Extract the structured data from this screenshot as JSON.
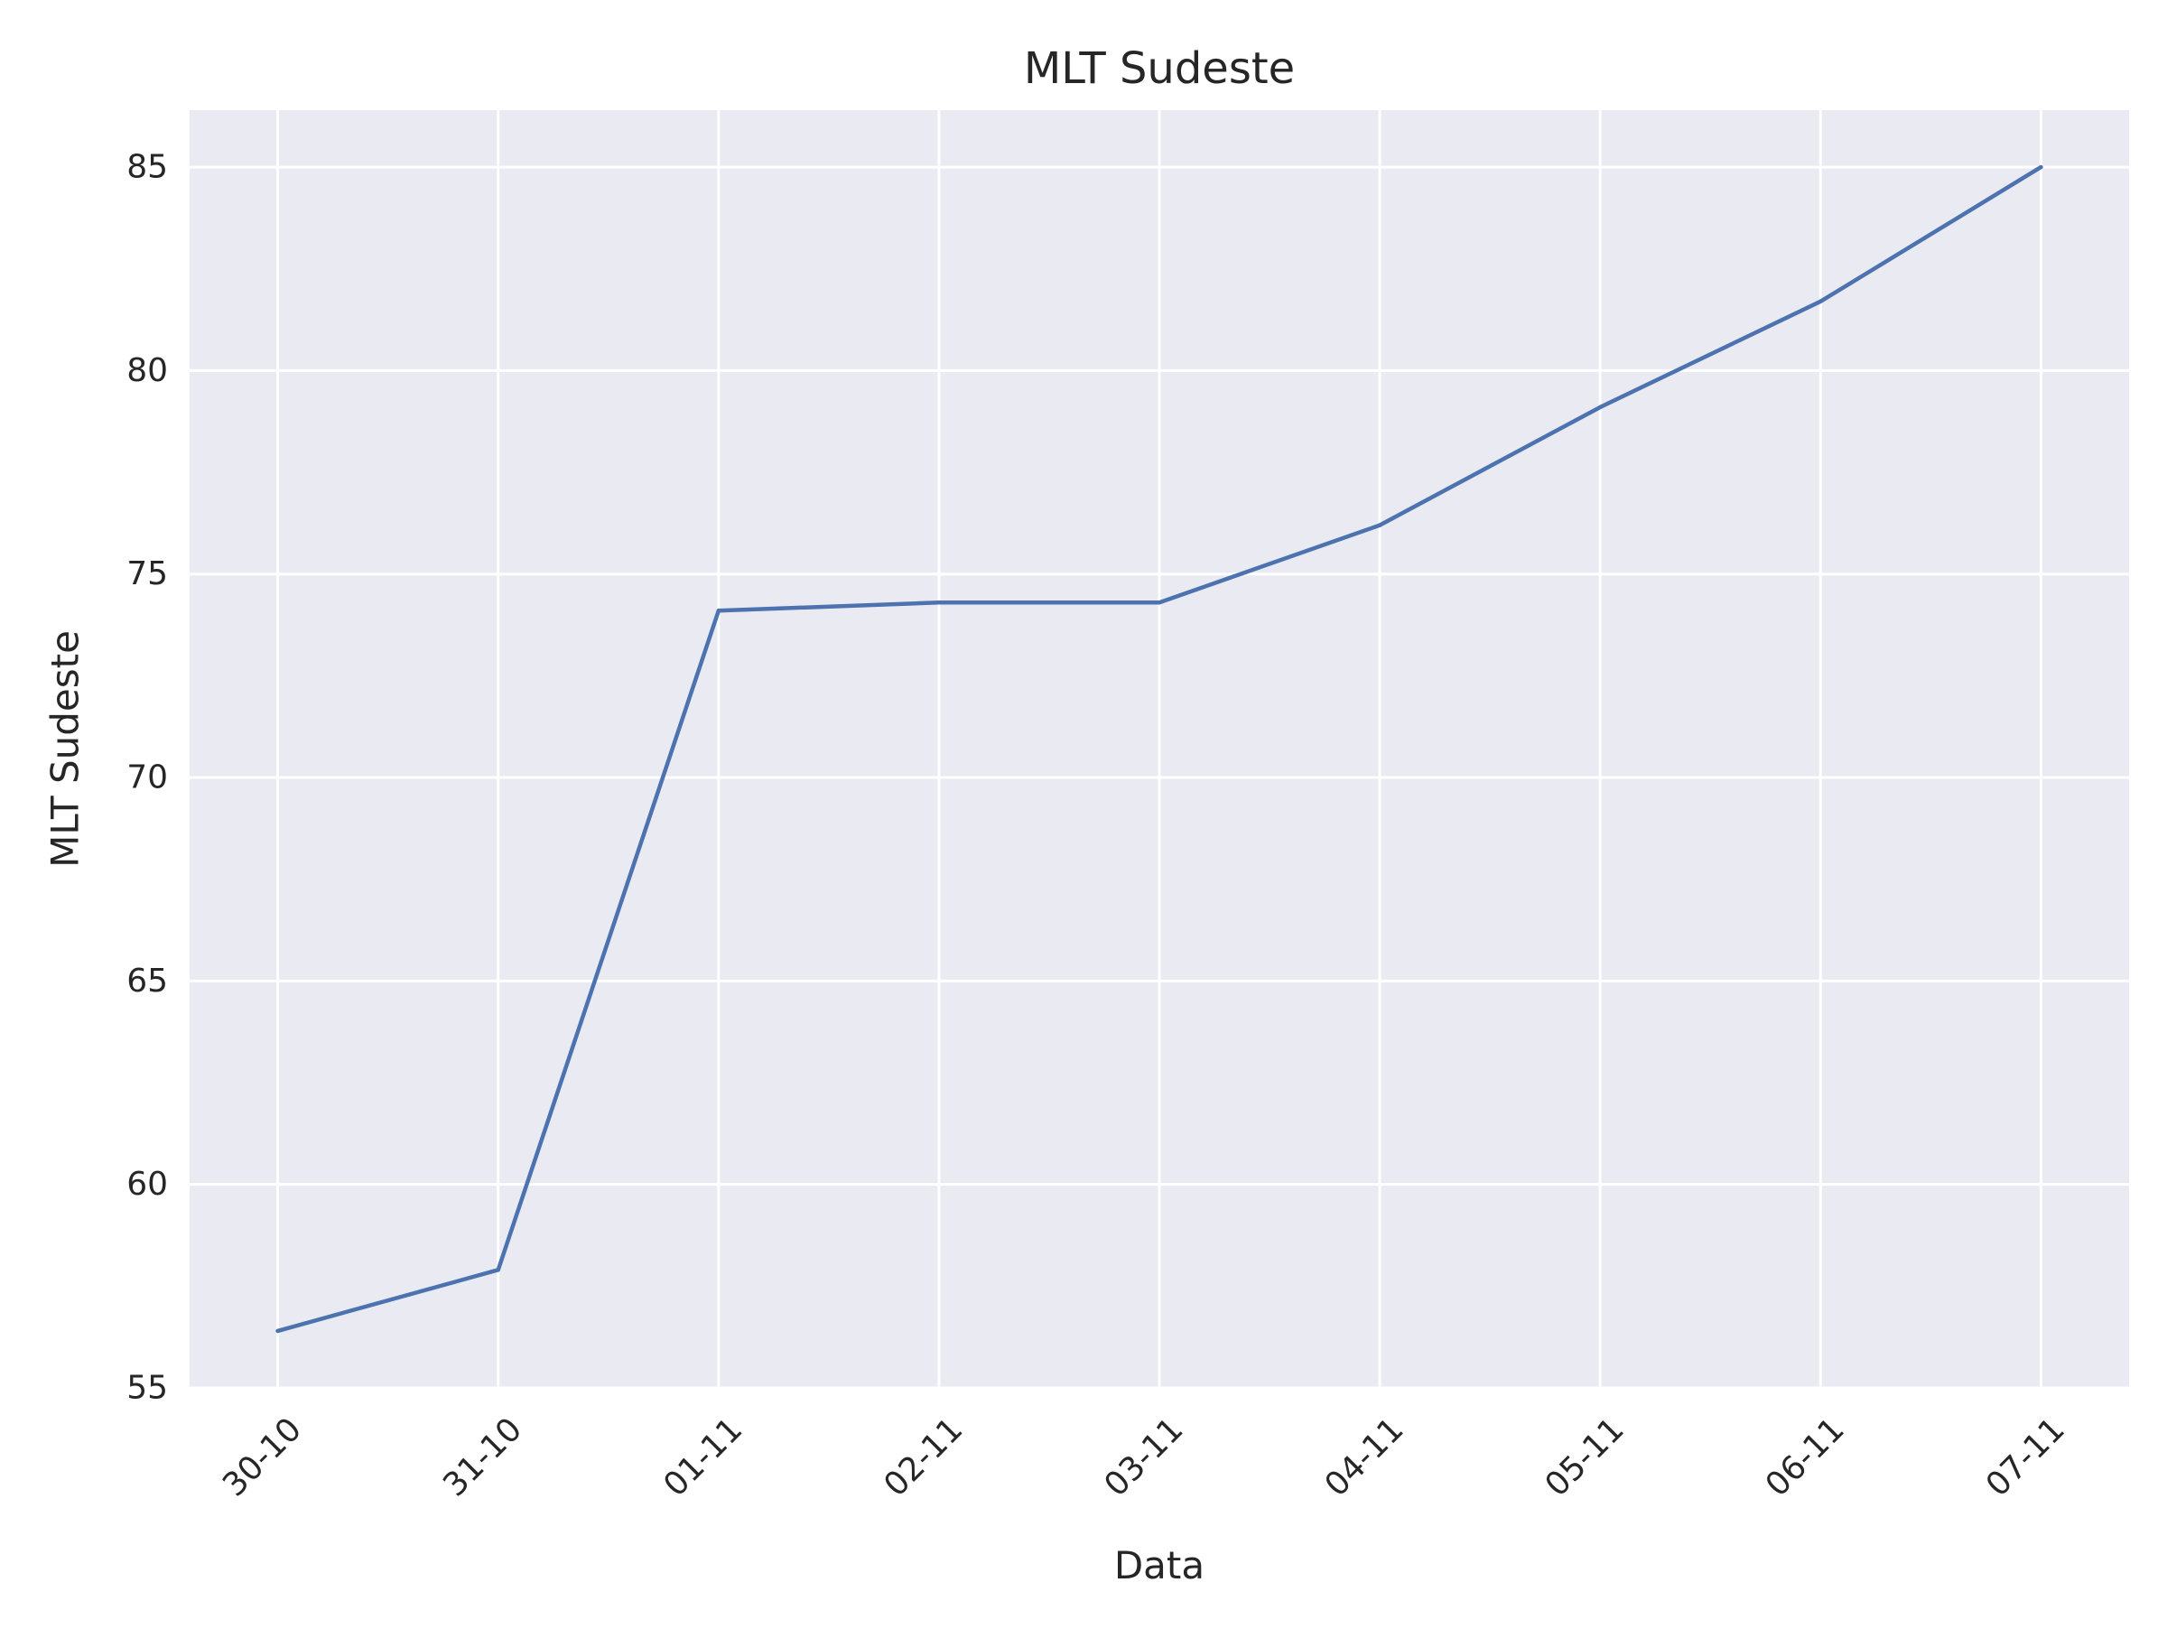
{
  "chart_data": {
    "type": "line",
    "title": "MLT Sudeste",
    "xlabel": "Data",
    "ylabel": "MLT Sudeste",
    "categories": [
      "30-10",
      "31-10",
      "01-11",
      "02-11",
      "03-11",
      "04-11",
      "05-11",
      "06-11",
      "07-11"
    ],
    "yticks": [
      "55",
      "60",
      "65",
      "70",
      "75",
      "80",
      "85"
    ],
    "ylim": [
      55,
      86.4
    ],
    "series": [
      {
        "values": [
          56.4,
          57.9,
          74.1,
          74.3,
          74.3,
          76.2,
          79.1,
          81.7,
          85.0
        ],
        "color": "#4c72b0"
      }
    ],
    "grid": true,
    "background_color": "#eaeaf2",
    "grid_color": "#ffffff"
  }
}
